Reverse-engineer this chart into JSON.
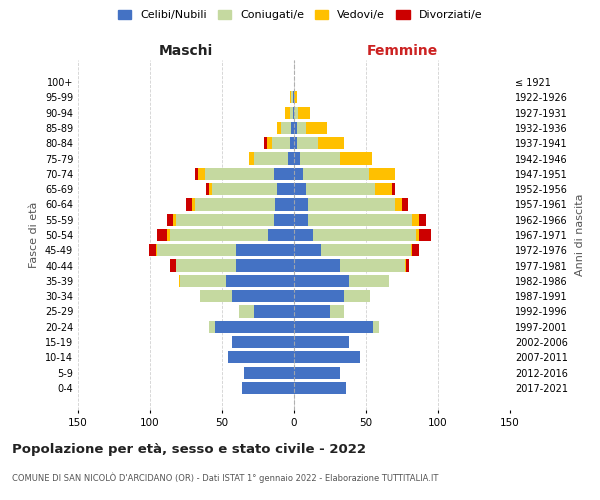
{
  "age_groups": [
    "0-4",
    "5-9",
    "10-14",
    "15-19",
    "20-24",
    "25-29",
    "30-34",
    "35-39",
    "40-44",
    "45-49",
    "50-54",
    "55-59",
    "60-64",
    "65-69",
    "70-74",
    "75-79",
    "80-84",
    "85-89",
    "90-94",
    "95-99",
    "100+"
  ],
  "birth_years": [
    "2017-2021",
    "2012-2016",
    "2007-2011",
    "2002-2006",
    "1997-2001",
    "1992-1996",
    "1987-1991",
    "1982-1986",
    "1977-1981",
    "1972-1976",
    "1967-1971",
    "1962-1966",
    "1957-1961",
    "1952-1956",
    "1947-1951",
    "1942-1946",
    "1937-1941",
    "1932-1936",
    "1927-1931",
    "1922-1926",
    "≤ 1921"
  ],
  "maschi": {
    "celibi": [
      36,
      35,
      46,
      43,
      55,
      28,
      43,
      47,
      40,
      40,
      18,
      14,
      13,
      12,
      14,
      4,
      3,
      2,
      1,
      1,
      0
    ],
    "coniugati": [
      0,
      0,
      0,
      0,
      4,
      10,
      22,
      32,
      42,
      55,
      68,
      68,
      56,
      45,
      48,
      24,
      12,
      7,
      2,
      1,
      0
    ],
    "vedovi": [
      0,
      0,
      0,
      0,
      0,
      0,
      0,
      1,
      0,
      1,
      2,
      2,
      2,
      2,
      5,
      3,
      4,
      3,
      3,
      1,
      0
    ],
    "divorziati": [
      0,
      0,
      0,
      0,
      0,
      0,
      0,
      0,
      4,
      5,
      7,
      4,
      4,
      2,
      2,
      0,
      2,
      0,
      0,
      0,
      0
    ]
  },
  "femmine": {
    "nubili": [
      36,
      32,
      46,
      38,
      55,
      25,
      35,
      38,
      32,
      19,
      13,
      10,
      10,
      8,
      6,
      4,
      2,
      2,
      0,
      0,
      0
    ],
    "coniugate": [
      0,
      0,
      0,
      0,
      4,
      10,
      18,
      28,
      45,
      62,
      72,
      72,
      60,
      48,
      46,
      28,
      15,
      6,
      3,
      0,
      0
    ],
    "vedove": [
      0,
      0,
      0,
      0,
      0,
      0,
      0,
      0,
      1,
      1,
      2,
      5,
      5,
      12,
      18,
      22,
      18,
      15,
      8,
      2,
      0
    ],
    "divorziate": [
      0,
      0,
      0,
      0,
      0,
      0,
      0,
      0,
      2,
      5,
      8,
      5,
      4,
      2,
      0,
      0,
      0,
      0,
      0,
      0,
      0
    ]
  },
  "colors": {
    "celibi": "#4472c4",
    "coniugati": "#c5d9a0",
    "vedovi": "#ffc000",
    "divorziati": "#cc0000"
  },
  "xlim": 150,
  "title": "Popolazione per età, sesso e stato civile - 2022",
  "subtitle": "COMUNE DI SAN NICOLÒ D'ARCIDANO (OR) - Dati ISTAT 1° gennaio 2022 - Elaborazione TUTTITALIA.IT",
  "ylabel_left": "Fasce di età",
  "ylabel_right": "Anni di nascita",
  "legend_labels": [
    "Celibi/Nubili",
    "Coniugati/e",
    "Vedovi/e",
    "Divorziati/e"
  ],
  "header_maschi": "Maschi",
  "header_femmine": "Femmine"
}
